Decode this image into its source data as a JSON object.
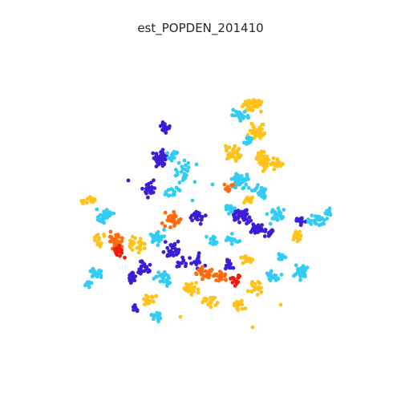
{
  "title": "est_POPDEN_201410",
  "palette": {
    "cyan": "#33ccf2",
    "blue": "#3b1fd6",
    "yellow": "#ffc21a",
    "orange": "#ff6a0d",
    "red": "#ef1c0c"
  },
  "point_style": "small filled circles",
  "axes_visible": false,
  "legend": "none"
}
